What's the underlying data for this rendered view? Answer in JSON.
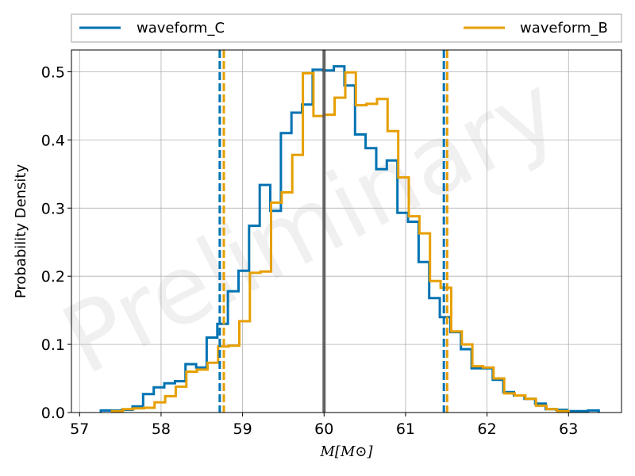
{
  "chart_data": {
    "type": "histogram",
    "xlabel": "M[M⊙]",
    "ylabel": "Probability Density",
    "xlim": [
      56.9,
      63.65
    ],
    "ylim": [
      0.0,
      0.532
    ],
    "xticks": [
      57,
      58,
      59,
      60,
      61,
      62,
      63
    ],
    "yticks": [
      0.0,
      0.1,
      0.2,
      0.3,
      0.4,
      0.5
    ],
    "xtick_labels": [
      "57",
      "58",
      "59",
      "60",
      "61",
      "62",
      "63"
    ],
    "ytick_labels": [
      "0.0",
      "0.1",
      "0.2",
      "0.3",
      "0.4",
      "0.5"
    ],
    "grid": true,
    "legend_position": "top, outside the axes",
    "watermark": "Preliminary",
    "vertical_line": {
      "x": 60.0,
      "color": "#555555"
    },
    "series": [
      {
        "name": "waveform_C",
        "color": "#0072b2",
        "bin_edges": [
          57.26,
          57.39,
          57.52,
          57.65,
          57.78,
          57.91,
          58.04,
          58.17,
          58.3,
          58.43,
          58.56,
          58.69,
          58.82,
          58.95,
          59.08,
          59.21,
          59.34,
          59.47,
          59.6,
          59.73,
          59.86,
          59.99,
          60.12,
          60.25,
          60.38,
          60.51,
          60.64,
          60.77,
          60.9,
          61.03,
          61.16,
          61.29,
          61.42,
          61.55,
          61.68,
          61.81,
          61.94,
          62.07,
          62.2,
          62.33,
          62.46,
          62.59,
          62.72,
          62.85,
          62.98,
          63.11,
          63.24,
          63.37
        ],
        "density": [
          0.003,
          0.003,
          0.004,
          0.009,
          0.027,
          0.037,
          0.043,
          0.046,
          0.071,
          0.066,
          0.11,
          0.13,
          0.178,
          0.208,
          0.274,
          0.334,
          0.296,
          0.41,
          0.44,
          0.452,
          0.503,
          0.502,
          0.508,
          0.48,
          0.408,
          0.388,
          0.357,
          0.37,
          0.293,
          0.28,
          0.221,
          0.168,
          0.14,
          0.118,
          0.093,
          0.065,
          0.065,
          0.048,
          0.03,
          0.025,
          0.02,
          0.013,
          0.005,
          0.004,
          0.002,
          0.002,
          0.003
        ],
        "interval": [
          58.72,
          61.47
        ]
      },
      {
        "name": "waveform_B",
        "color": "#e69f00",
        "bin_edges": [
          57.4,
          57.53,
          57.66,
          57.79,
          57.92,
          58.05,
          58.18,
          58.31,
          58.44,
          58.57,
          58.7,
          58.83,
          58.96,
          59.09,
          59.22,
          59.35,
          59.48,
          59.61,
          59.74,
          59.87,
          60.0,
          60.13,
          60.26,
          60.39,
          60.52,
          60.65,
          60.78,
          60.91,
          61.04,
          61.17,
          61.3,
          61.43,
          61.56,
          61.69,
          61.82,
          61.95,
          62.08,
          62.21,
          62.34,
          62.47,
          62.6,
          62.73,
          62.86,
          63.0
        ],
        "density": [
          0.002,
          0.005,
          0.006,
          0.007,
          0.015,
          0.024,
          0.038,
          0.06,
          0.063,
          0.073,
          0.097,
          0.098,
          0.134,
          0.205,
          0.207,
          0.308,
          0.323,
          0.378,
          0.498,
          0.435,
          0.437,
          0.462,
          0.499,
          0.451,
          0.453,
          0.46,
          0.413,
          0.345,
          0.288,
          0.263,
          0.193,
          0.183,
          0.119,
          0.1,
          0.068,
          0.066,
          0.05,
          0.028,
          0.025,
          0.02,
          0.01,
          0.005,
          0.002
        ],
        "interval": [
          58.77,
          61.51
        ]
      }
    ]
  }
}
